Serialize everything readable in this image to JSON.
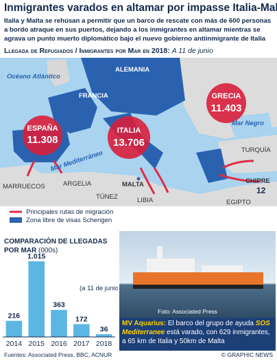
{
  "header": {
    "title": "Inmigrantes varados en altamar por impasse Italia-Malta",
    "subtitle": "Italia y Malta se rehúsan a permitir que un barco de rescate con más de 600 personas a bordo atraque en sus puertos, dejando a los inmigrantes en altamar mientras se agrava un punto muerto diplomático bajo el nuevo gobierno antiinmigrante de Italia"
  },
  "map": {
    "heading": "Llegada de Refugiados / Inmigrantes por Mar en 2018:",
    "heading_note": "A 11 de junio",
    "labels": [
      "Océano Atlántico",
      "ALEMANIA",
      "FRANCIA",
      "Mar Negro",
      "TURQUÍA",
      "Mar Mediterráneo",
      "MARRUECOS",
      "ARGELIA",
      "TÚNEZ",
      "MALTA",
      "LIBIA",
      "EGIPTO",
      "CHIPRE"
    ],
    "bubbles": [
      {
        "country": "ESPAÑA",
        "value": "11.308"
      },
      {
        "country": "ITALIA",
        "value": "13.706"
      },
      {
        "country": "GRECIA",
        "value": "11.403"
      }
    ],
    "cyprus_value": "12",
    "legend": [
      "Principales rutas de migración",
      "Zona libre de visas Schengen"
    ]
  },
  "chart_data": {
    "type": "bar",
    "title": "COMPARACIÓN DE LLEGADAS POR MAR",
    "subtitle": "(000s)",
    "categories": [
      "2014",
      "2015",
      "2016",
      "2017",
      "2018"
    ],
    "values": [
      216,
      1015,
      363,
      172,
      36
    ],
    "value_labels": [
      "216",
      "1.015",
      "363",
      "172",
      "36"
    ],
    "color": "#5cb6e4",
    "annotation": "(a 11 de junio)"
  },
  "photo": {
    "credit": "Foto: Associated Press",
    "caption_lead": "MV Aquarius:",
    "caption_1": "El barco del grupo de ayuda",
    "caption_em": "SOS Mediterranee",
    "caption_2": "está varado, con 629 inmigrantes, a 65 km de Italia y 50km de Malta"
  },
  "footer": {
    "sources": "Fuentes: Associated Press, BBC, ACNUR",
    "credit": "© GRAPHIC NEWS"
  }
}
